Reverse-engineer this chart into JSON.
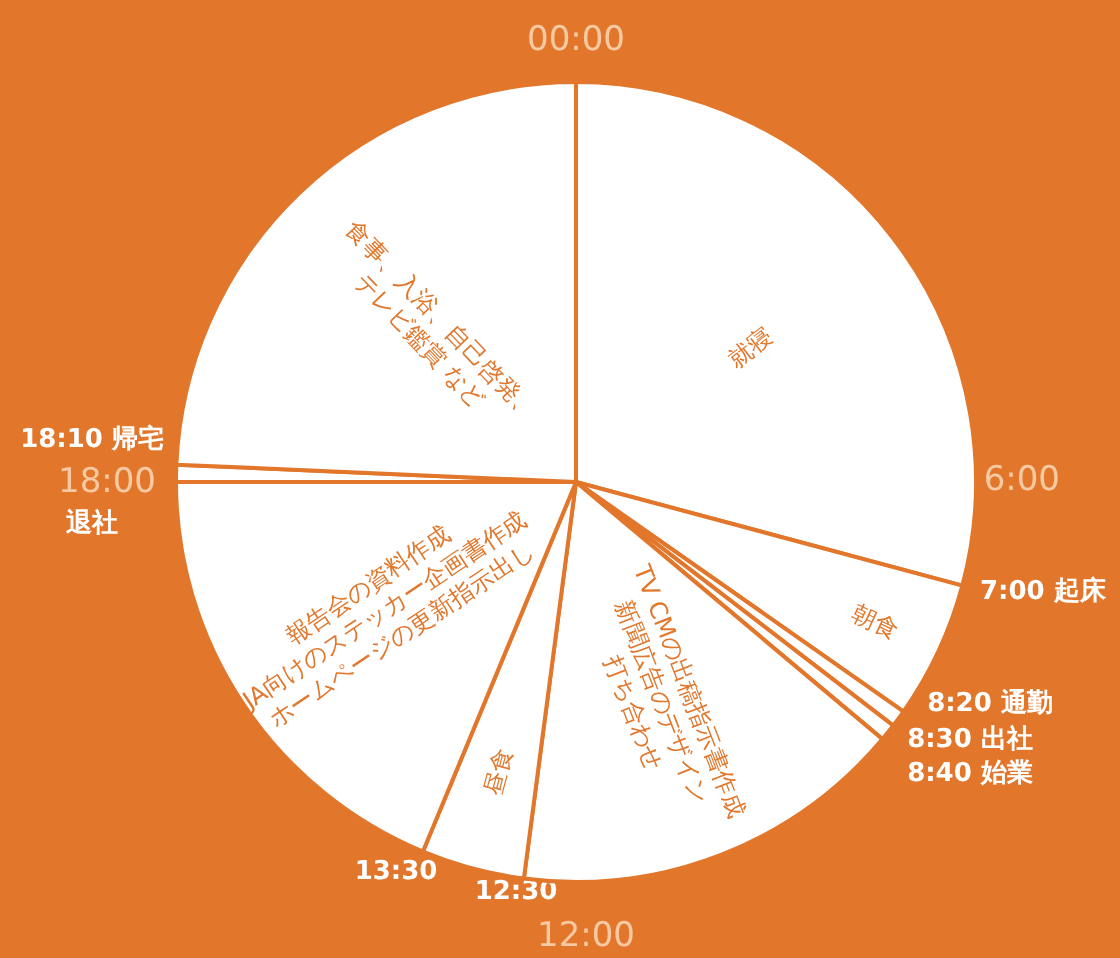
{
  "chart_data": {
    "type": "pie",
    "categories": [
      "就寝",
      "朝食",
      null,
      null,
      "TV CMの出稿指示書作成\n新聞広告のデザイン\n打ち合わせ",
      "昼食",
      "報告会の資料作成\nJA向けのステッカー企画書作成\nホームページの更新指示出し",
      null,
      "食事、入浴、自己啓発、\nテレビ鑑賞 など"
    ],
    "values": [
      29.17,
      5.56,
      0.69,
      0.69,
      15.97,
      4.17,
      18.75,
      0.69,
      24.31
    ],
    "colors": [
      "#ffffff",
      "#ffffff",
      "#ffffff",
      "#ffffff",
      "#ffffff",
      "#ffffff",
      "#ffffff",
      "#ffffff",
      "#ffffff"
    ],
    "annotations": [
      "00:00",
      "6:00",
      "12:00",
      "18:00",
      "7:00 起床",
      "8:20 通勤",
      "8:30 出社",
      "8:40 始業",
      "12:30",
      "13:30",
      "18:10 帰宅",
      "退社"
    ]
  }
}
